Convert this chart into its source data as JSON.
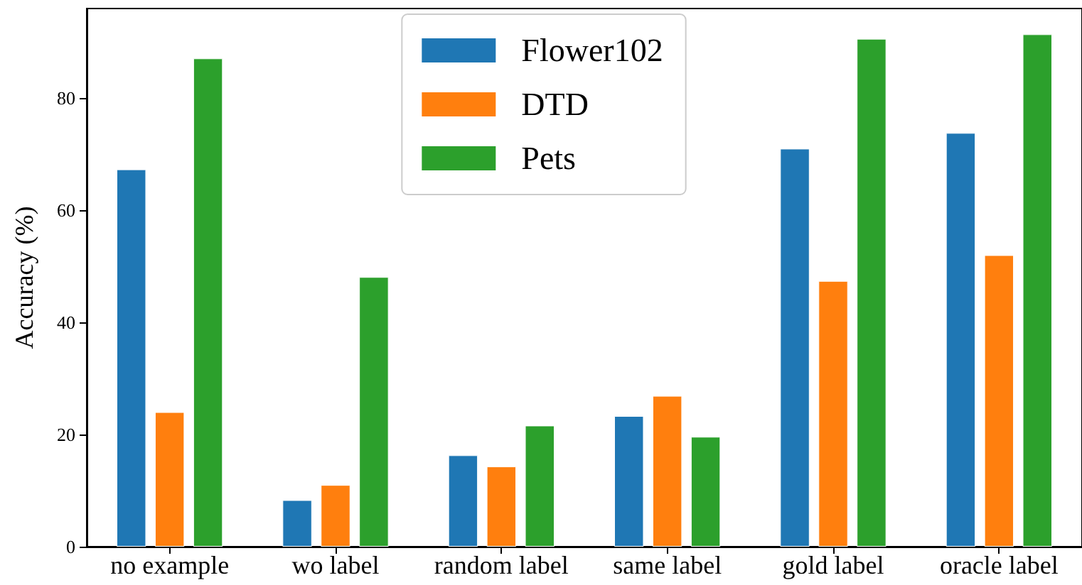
{
  "chart_data": {
    "type": "bar",
    "ylabel": "Accuracy (%)",
    "categories": [
      "no example",
      "wo label",
      "random label",
      "same label",
      "gold label",
      "oracle label"
    ],
    "series": [
      {
        "name": "Flower102",
        "color": "#1f77b4",
        "values": [
          67.3,
          8.3,
          16.3,
          23.3,
          71.0,
          73.8
        ]
      },
      {
        "name": "DTD",
        "color": "#ff7f0e",
        "values": [
          24.0,
          11.0,
          14.3,
          26.9,
          47.4,
          52.0
        ]
      },
      {
        "name": "Pets",
        "color": "#2ca02c",
        "values": [
          87.1,
          48.1,
          21.6,
          19.6,
          90.6,
          91.4
        ]
      }
    ],
    "ylim": [
      0,
      96
    ],
    "yticks": [
      0,
      20,
      40,
      60,
      80
    ],
    "grid": false,
    "legend": "top"
  }
}
